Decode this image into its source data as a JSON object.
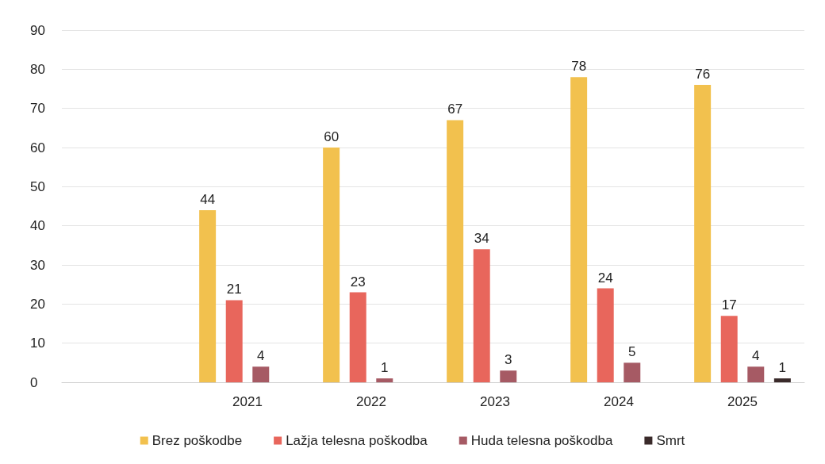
{
  "chart_data": {
    "type": "bar",
    "categories": [
      null,
      "2021",
      "2022",
      "2023",
      "2024",
      "2025"
    ],
    "series": [
      {
        "name": "Brez poškodbe",
        "color": "#f2c14e",
        "values": [
          null,
          44,
          60,
          67,
          78,
          76
        ],
        "value_labels": [
          null,
          "44",
          "60",
          "67",
          "78",
          "76"
        ]
      },
      {
        "name": "Lažja telesna poškodba",
        "color": "#e8665c",
        "values": [
          null,
          21,
          23,
          34,
          24,
          17
        ],
        "value_labels": [
          null,
          "21",
          "23",
          "34",
          "24",
          "17"
        ]
      },
      {
        "name": "Huda telesna poškodba",
        "color": "#a65a64",
        "values": [
          null,
          4,
          1,
          3,
          5,
          4
        ],
        "value_labels": [
          null,
          "4",
          "1",
          "3",
          "5",
          "4"
        ]
      },
      {
        "name": "Smrt",
        "color": "#3a2a2a",
        "values": [
          null,
          0,
          0,
          0,
          0,
          1
        ],
        "value_labels": [
          null,
          null,
          null,
          null,
          null,
          "1"
        ]
      }
    ],
    "ylim": [
      0,
      90
    ],
    "yticks": [
      0,
      10,
      20,
      30,
      40,
      50,
      60,
      70,
      80,
      90
    ],
    "grid": "y",
    "legend": "bottom"
  }
}
